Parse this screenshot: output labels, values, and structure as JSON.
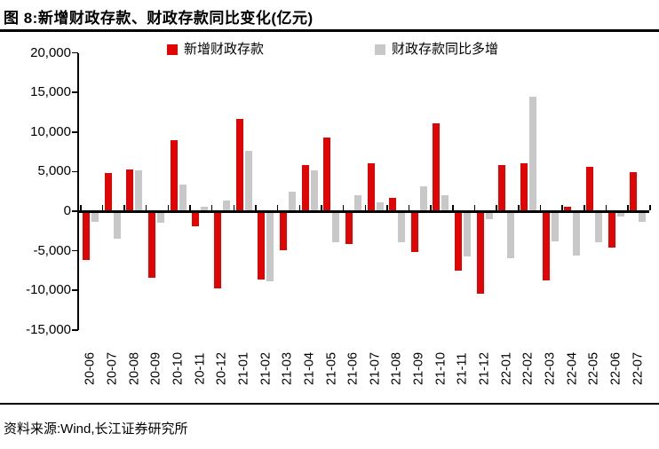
{
  "title": "图 8:新增财政存款、财政存款同比变化(亿元)",
  "footer": {
    "source_text": "资料来源:Wind,长江证券研究所"
  },
  "colors": {
    "series_red": "#e00505",
    "series_gray": "#c8c8c8",
    "axis": "#000000"
  },
  "legend": [
    {
      "label": "新增财政存款",
      "color": "#e00505"
    },
    {
      "label": "财政存款同比多增",
      "color": "#c8c8c8"
    }
  ],
  "chart_data": {
    "type": "bar",
    "title": "图 8:新增财政存款、财政存款同比变化(亿元)",
    "unit": "亿元",
    "categories": [
      "20-06",
      "20-07",
      "20-08",
      "20-09",
      "20-10",
      "20-11",
      "20-12",
      "21-01",
      "21-02",
      "21-03",
      "21-04",
      "21-05",
      "21-06",
      "21-07",
      "21-08",
      "21-09",
      "21-10",
      "21-11",
      "21-12",
      "22-01",
      "22-02",
      "22-03",
      "22-04",
      "22-05",
      "22-06",
      "22-07"
    ],
    "series": [
      {
        "name": "新增财政存款",
        "color": "#e00505",
        "values": [
          -6000,
          4700,
          5200,
          -8200,
          8900,
          -1700,
          -9600,
          11600,
          -8500,
          -4800,
          5700,
          9200,
          -4000,
          5900,
          1600,
          -5000,
          11000,
          -7300,
          -10300,
          5700,
          5900,
          -8600,
          400,
          5500,
          -4400,
          4800
        ]
      },
      {
        "name": "财政存款同比多增",
        "color": "#c8c8c8",
        "values": [
          -1200,
          -3300,
          5100,
          -1300,
          3300,
          500,
          1200,
          7500,
          -8700,
          2300,
          5100,
          -3700,
          1900,
          1000,
          -3700,
          3000,
          1900,
          -5500,
          -800,
          -5800,
          14400,
          -3600,
          -5400,
          -3700,
          -500,
          -1200
        ]
      }
    ],
    "ylim": [
      -15000,
      20000
    ],
    "ytick_step": 5000,
    "ytick_values": [
      20000,
      15000,
      10000,
      5000,
      0,
      -5000,
      -10000,
      -15000
    ],
    "ytick_labels": [
      "20,000",
      "15,000",
      "10,000",
      "5,000",
      "0",
      "-5,000",
      "-10,000",
      "-15,000"
    ],
    "grid": false,
    "legend_position": "top"
  }
}
